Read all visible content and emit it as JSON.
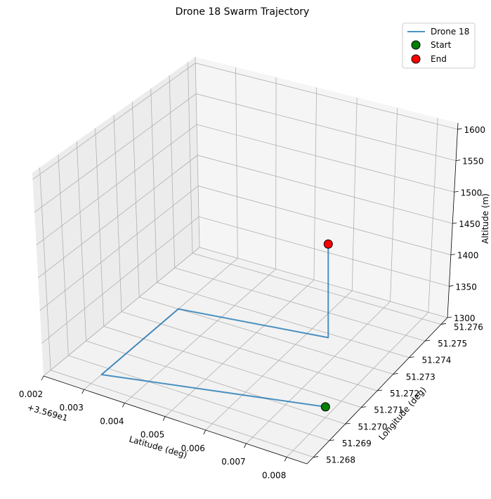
{
  "chart_data": {
    "type": "line",
    "projection": "3d",
    "title": "Drone 18 Swarm Trajectory",
    "xlabel": "Latitude (deg)",
    "ylabel": "Longitude (deg)",
    "zlabel": "Altitude (m)",
    "x_offset_label": "+3.569e1",
    "x_ticks": [
      "0.002",
      "0.003",
      "0.004",
      "0.005",
      "0.006",
      "0.007",
      "0.008"
    ],
    "y_ticks": [
      "51.268",
      "51.269",
      "51.270",
      "51.271",
      "51.272",
      "51.273",
      "51.274",
      "51.275",
      "51.276"
    ],
    "z_ticks": [
      "1300",
      "1350",
      "1400",
      "1450",
      "1500",
      "1550",
      "1600"
    ],
    "xlim": [
      35.692,
      35.6985
    ],
    "ylim": [
      51.2676,
      51.2764
    ],
    "zlim": [
      1300,
      1610
    ],
    "grid": true,
    "legend_position": "top-right",
    "series": [
      {
        "name": "Drone 18",
        "color": "#1f77b4",
        "points": [
          {
            "x": 35.6978,
            "y": 51.2705,
            "z": 1300
          },
          {
            "x": 35.693,
            "y": 51.2686,
            "z": 1300
          },
          {
            "x": 35.693,
            "y": 51.273,
            "z": 1300
          },
          {
            "x": 35.6965,
            "y": 51.2738,
            "z": 1300
          },
          {
            "x": 35.6965,
            "y": 51.2738,
            "z": 1450
          }
        ]
      }
    ],
    "markers": [
      {
        "label": "Start",
        "color": "#008000"
      },
      {
        "label": "End",
        "color": "#ff0000"
      }
    ]
  }
}
